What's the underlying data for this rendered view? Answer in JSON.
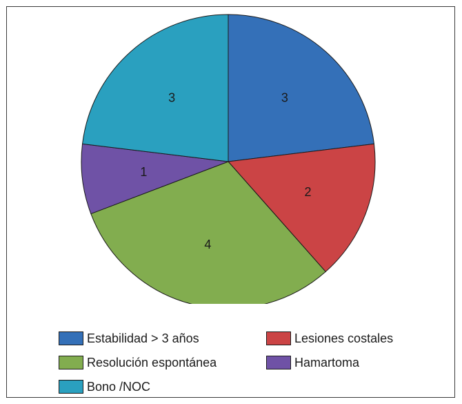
{
  "chart_data": {
    "type": "pie",
    "title": "",
    "slices": [
      {
        "label": "Estabilidad > 3 años",
        "value": 3,
        "color": "#3470b8"
      },
      {
        "label": "Lesiones costales",
        "value": 2,
        "color": "#cb4445"
      },
      {
        "label": "Resolución espontánea",
        "value": 4,
        "color": "#82ad4f"
      },
      {
        "label": "Hamartoma",
        "value": 1,
        "color": "#6f52a6"
      },
      {
        "label": "Bono /NOC",
        "value": 3,
        "color": "#2aa0bf"
      }
    ],
    "data_labels": [
      "3",
      "2",
      "4",
      "1",
      "3"
    ],
    "legend_position": "bottom"
  }
}
